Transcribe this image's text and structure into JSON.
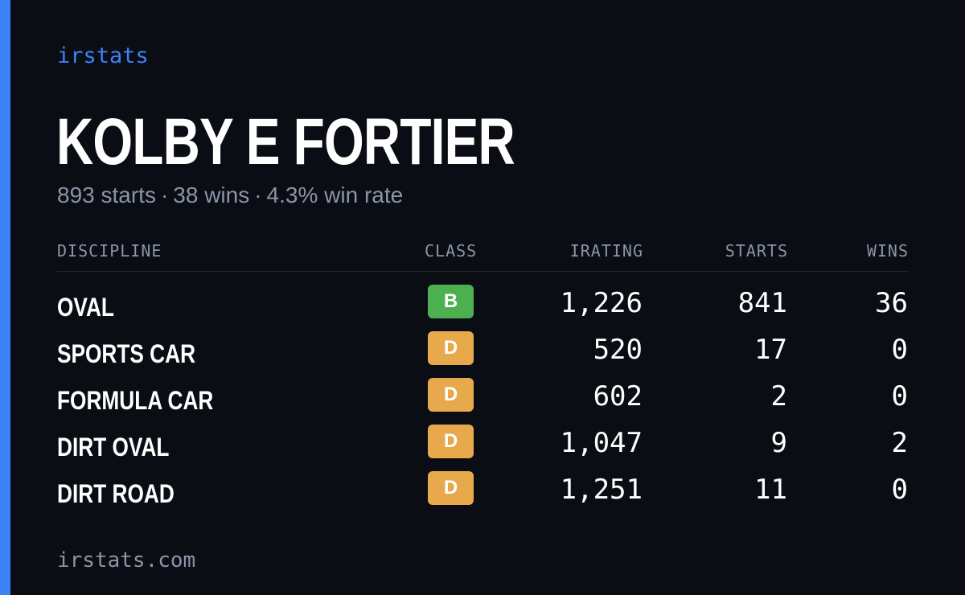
{
  "brand": "irstats",
  "driver": {
    "name": "KOLBY E FORTIER",
    "starts_text": "893 starts",
    "wins_text": "38 wins",
    "win_rate_text": "4.3% win rate",
    "separator": "·"
  },
  "table": {
    "headers": {
      "discipline": "DISCIPLINE",
      "class": "CLASS",
      "irating": "IRATING",
      "starts": "STARTS",
      "wins": "WINS"
    },
    "rows": [
      {
        "discipline": "OVAL",
        "class": "B",
        "class_color": "#4caf50",
        "irating": "1,226",
        "starts": "841",
        "wins": "36"
      },
      {
        "discipline": "SPORTS CAR",
        "class": "D",
        "class_color": "#e8a94d",
        "irating": "520",
        "starts": "17",
        "wins": "0"
      },
      {
        "discipline": "FORMULA CAR",
        "class": "D",
        "class_color": "#e8a94d",
        "irating": "602",
        "starts": "2",
        "wins": "0"
      },
      {
        "discipline": "DIRT OVAL",
        "class": "D",
        "class_color": "#e8a94d",
        "irating": "1,047",
        "starts": "9",
        "wins": "2"
      },
      {
        "discipline": "DIRT ROAD",
        "class": "D",
        "class_color": "#e8a94d",
        "irating": "1,251",
        "starts": "11",
        "wins": "0"
      }
    ]
  },
  "footer": "irstats.com",
  "colors": {
    "accent": "#3b82f6",
    "background": "#0a0d14",
    "muted_text": "#8b95a7"
  }
}
